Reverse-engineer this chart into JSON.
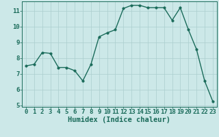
{
  "x": [
    0,
    1,
    2,
    3,
    4,
    5,
    6,
    7,
    8,
    9,
    10,
    11,
    12,
    13,
    14,
    15,
    16,
    17,
    18,
    19,
    20,
    21,
    22,
    23
  ],
  "y": [
    7.5,
    7.6,
    8.35,
    8.3,
    7.4,
    7.4,
    7.2,
    6.55,
    7.6,
    9.35,
    9.6,
    9.8,
    11.15,
    11.35,
    11.35,
    11.2,
    11.2,
    11.2,
    10.4,
    11.2,
    9.8,
    8.55,
    6.55,
    5.25
  ],
  "xlabel": "Humidex (Indice chaleur)",
  "xlim_min": -0.5,
  "xlim_max": 23.5,
  "ylim_min": 4.9,
  "ylim_max": 11.6,
  "yticks": [
    5,
    6,
    7,
    8,
    9,
    10,
    11
  ],
  "xticks": [
    0,
    1,
    2,
    3,
    4,
    5,
    6,
    7,
    8,
    9,
    10,
    11,
    12,
    13,
    14,
    15,
    16,
    17,
    18,
    19,
    20,
    21,
    22,
    23
  ],
  "line_color": "#1a6b5a",
  "marker_color": "#1a6b5a",
  "bg_color": "#cce8e8",
  "grid_color": "#aacece",
  "xlabel_fontsize": 7.5,
  "tick_fontsize": 6.5,
  "linewidth": 1.0,
  "marker_size": 2.5
}
